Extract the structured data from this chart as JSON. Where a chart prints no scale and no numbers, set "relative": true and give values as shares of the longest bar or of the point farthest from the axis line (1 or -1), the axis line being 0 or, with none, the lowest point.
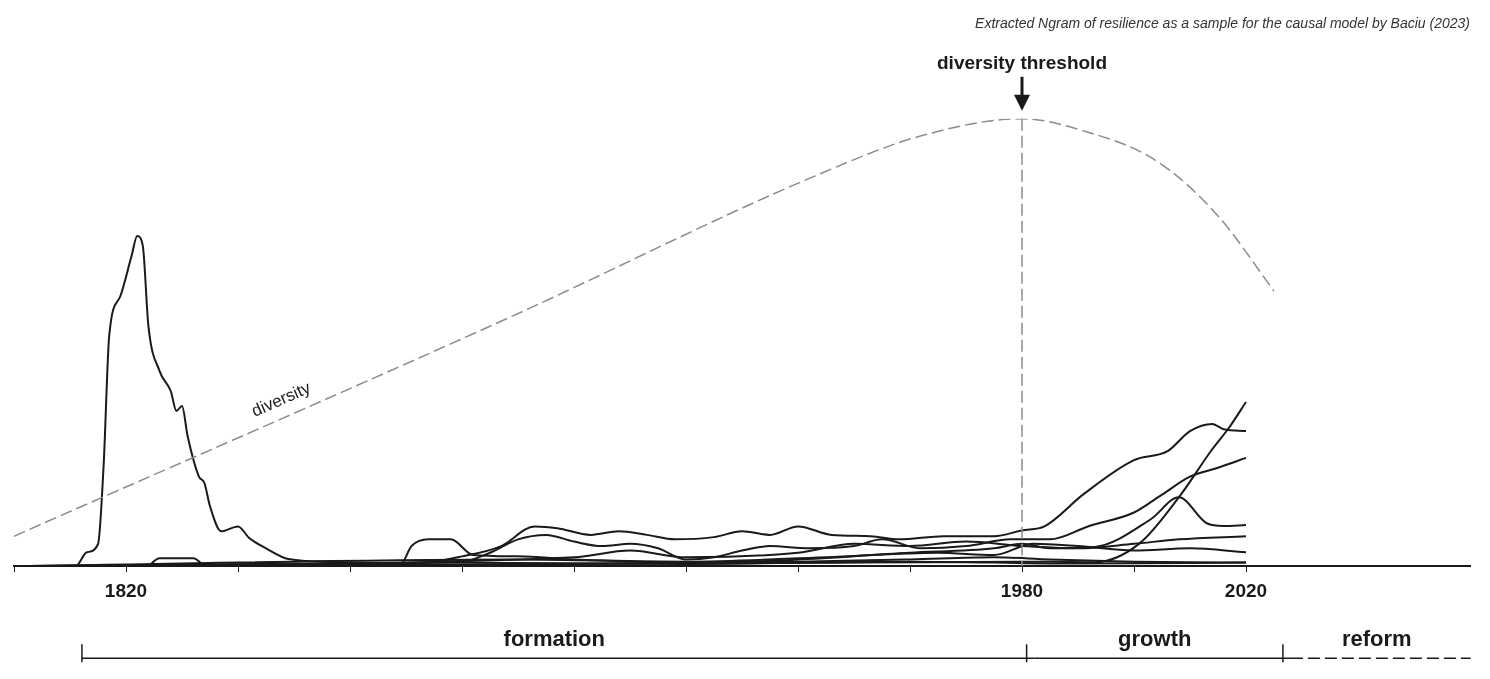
{
  "chart_data": {
    "type": "line",
    "title": "Extracted Ngram of resilience as a sample for the causal model by Baciu (2023)",
    "relative": true,
    "marker": "none",
    "legend": false,
    "grid": false,
    "xlim": [
      1800,
      2060
    ],
    "xticks": [
      {
        "value": 1800,
        "label": null
      },
      1820,
      {
        "value": 1840,
        "label": null
      },
      {
        "value": 1860,
        "label": null
      },
      {
        "value": 1880,
        "label": null
      },
      {
        "value": 1900,
        "label": null
      },
      {
        "value": 1920,
        "label": null
      },
      {
        "value": 1940,
        "label": null
      },
      {
        "value": 1960,
        "label": null
      },
      1980,
      {
        "value": 2000,
        "label": null
      },
      2020
    ],
    "ref_lines": [
      {
        "axis": "x",
        "value": 1980,
        "label": "diversity threshold",
        "color": "#8c8c8c",
        "line_style": "dashed"
      }
    ],
    "annotations": [
      "formation",
      "growth",
      "reform"
    ],
    "series": [
      {
        "name": "diversity",
        "color": "#8c8c8c",
        "line_style": "dashed",
        "x": [
          1800,
          1889,
          1943,
          1962,
          1980,
          1991,
          2004,
          2015,
          2025
        ],
        "values": [
          0.067,
          0.559,
          0.872,
          0.962,
          1,
          0.973,
          0.906,
          0.783,
          0.615
        ]
      },
      {
        "color": "#1a1a1a",
        "x": [
          1800,
          1811,
          1813,
          1815,
          1816,
          1817,
          1819,
          1821,
          1822,
          1823,
          1824,
          1826,
          1828,
          1829,
          1830,
          1831,
          1833,
          1834,
          1835,
          1837,
          1840,
          1842,
          1845,
          1849,
          1858,
          1870,
          1907,
          2020
        ],
        "values": [
          0,
          0,
          0.031,
          0.049,
          0.224,
          0.515,
          0.604,
          0.694,
          0.738,
          0.716,
          0.537,
          0.436,
          0.391,
          0.347,
          0.358,
          0.291,
          0.201,
          0.186,
          0.134,
          0.078,
          0.089,
          0.063,
          0.04,
          0.016,
          0.009,
          0.004,
          0,
          0
        ]
      },
      {
        "color": "#1a1a1a",
        "x": [
          1824,
          1826,
          1832,
          1834
        ],
        "values": [
          0,
          0.018,
          0.018,
          0
        ]
      },
      {
        "color": "#1a1a1a",
        "x": [
          1800,
          1869,
          1871,
          1874,
          1878,
          1882,
          1890,
          1900,
          1920,
          1940,
          1960,
          1975,
          1985,
          2000,
          2020
        ],
        "values": [
          0,
          0.004,
          0.045,
          0.06,
          0.06,
          0.025,
          0.022,
          0.015,
          0.008,
          0.01,
          0.015,
          0.02,
          0.015,
          0.01,
          0.008
        ]
      },
      {
        "color": "#1a1a1a",
        "x": [
          1800,
          1870,
          1880,
          1887,
          1893,
          1897,
          1903,
          1908,
          1913,
          1918,
          1925,
          1930,
          1935,
          1940,
          1946,
          1953,
          1958,
          1966,
          1975,
          1980,
          1984,
          1991,
          2000,
          2006,
          2010,
          2014,
          2016,
          2020
        ],
        "values": [
          0,
          0.004,
          0.022,
          0.045,
          0.089,
          0.085,
          0.07,
          0.078,
          0.07,
          0.06,
          0.065,
          0.078,
          0.07,
          0.089,
          0.07,
          0.067,
          0.06,
          0.067,
          0.067,
          0.08,
          0.089,
          0.161,
          0.237,
          0.257,
          0.302,
          0.318,
          0.306,
          0.302
        ]
      },
      {
        "color": "#1a1a1a",
        "x": [
          1800,
          1880,
          1885,
          1890,
          1895,
          1900,
          1905,
          1910,
          1915,
          1920,
          1925,
          1930,
          1935,
          1942,
          1950,
          1955,
          1962,
          1970,
          1978,
          1985,
          1992,
          2000,
          2005,
          2010,
          2015,
          2020
        ],
        "values": [
          0,
          0.01,
          0.03,
          0.06,
          0.07,
          0.055,
          0.045,
          0.05,
          0.04,
          0.015,
          0.02,
          0.035,
          0.045,
          0.04,
          0.045,
          0.06,
          0.04,
          0.045,
          0.06,
          0.06,
          0.09,
          0.12,
          0.16,
          0.2,
          0.22,
          0.242
        ]
      },
      {
        "color": "#1a1a1a",
        "x": [
          1800,
          1900,
          1950,
          1985,
          1993,
          2001,
          2008,
          2014,
          2017,
          2020
        ],
        "values": [
          0,
          0.005,
          0.008,
          0.01,
          0.009,
          0.051,
          0.154,
          0.262,
          0.31,
          0.367
        ]
      },
      {
        "color": "#1a1a1a",
        "x": [
          1800,
          1930,
          1960,
          1975,
          1980,
          1985,
          1993,
          2003,
          2008,
          2013,
          2016,
          2020
        ],
        "values": [
          0,
          0.01,
          0.03,
          0.04,
          0.05,
          0.04,
          0.043,
          0.105,
          0.154,
          0.096,
          0.09,
          0.092
        ]
      },
      {
        "color": "#1a1a1a",
        "x": [
          1800,
          1900,
          1910,
          1920,
          1940,
          1950,
          1960,
          1970,
          1980,
          1990,
          2000,
          2008,
          2020
        ],
        "values": [
          0,
          0.02,
          0.035,
          0.02,
          0.03,
          0.05,
          0.045,
          0.055,
          0.045,
          0.04,
          0.05,
          0.06,
          0.067
        ]
      },
      {
        "color": "#1a1a1a",
        "x": [
          1800,
          1890,
          1920,
          1945,
          1965,
          1975,
          1982,
          1990,
          2000,
          2010,
          2020
        ],
        "values": [
          0,
          0.015,
          0.01,
          0.02,
          0.03,
          0.025,
          0.05,
          0.045,
          0.035,
          0.04,
          0.031
        ]
      },
      {
        "color": "#1a1a1a",
        "x": [
          1800,
          1880,
          1920,
          1960,
          1990,
          2020
        ],
        "values": [
          0,
          0.008,
          0.005,
          0.01,
          0.006,
          0.008
        ]
      }
    ]
  }
}
